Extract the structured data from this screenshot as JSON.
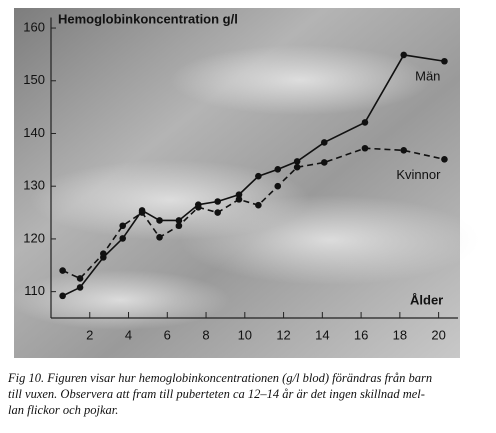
{
  "chart_data": {
    "type": "line",
    "title": "Hemoglobinkoncentration g/l",
    "x_label": "Ålder",
    "xlim": [
      0,
      21
    ],
    "xticks": [
      2,
      4,
      6,
      8,
      10,
      12,
      14,
      16,
      18,
      20
    ],
    "ylim": [
      105,
      162
    ],
    "yticks": [
      110,
      120,
      130,
      140,
      150,
      160
    ],
    "series": [
      {
        "name": "Män",
        "color": "#111111",
        "dash": false,
        "x": [
          0.6,
          1.5,
          2.7,
          3.7,
          4.7,
          5.6,
          6.6,
          7.6,
          8.6,
          9.7,
          10.7,
          11.7,
          12.7,
          14.1,
          16.2,
          18.2,
          20.3
        ],
        "values": [
          109.2,
          110.8,
          116.5,
          120.1,
          125.4,
          123.5,
          123.5,
          126.5,
          127.1,
          128.4,
          131.9,
          133.2,
          134.7,
          138.3,
          142.1,
          154.9,
          153.7
        ]
      },
      {
        "name": "Kvinnor",
        "color": "#111111",
        "dash": true,
        "x": [
          0.6,
          1.5,
          2.7,
          3.7,
          4.7,
          5.6,
          6.6,
          7.6,
          8.6,
          9.7,
          10.7,
          11.7,
          12.7,
          14.1,
          16.2,
          18.2,
          20.3
        ],
        "values": [
          114.0,
          112.5,
          117.2,
          122.5,
          125.0,
          120.3,
          122.5,
          126.0,
          125.0,
          127.5,
          126.4,
          130.0,
          133.6,
          134.5,
          137.2,
          136.8,
          135.1
        ]
      }
    ],
    "caption": [
      "Fig 10. Figuren visar hur hemoglobinkoncentrationen (g/l blod) förändras från barn",
      "till vuxen. Observera att fram till puberteten ca 12–14 år är det ingen skillnad mel-",
      "lan flickor och pojkar."
    ]
  }
}
